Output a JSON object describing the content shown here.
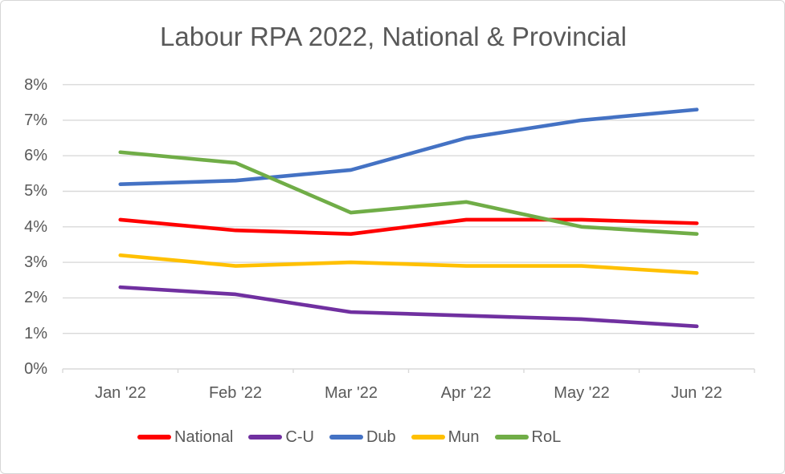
{
  "chart_data": {
    "type": "line",
    "title": "Labour RPA 2022, National & Provincial",
    "categories": [
      "Jan '22",
      "Feb '22",
      "Mar '22",
      "Apr '22",
      "May '22",
      "Jun '22"
    ],
    "y_tick_labels": [
      "8%",
      "7%",
      "6%",
      "5%",
      "4%",
      "3%",
      "2%",
      "1%",
      "0%"
    ],
    "ylim": [
      0,
      8
    ],
    "y_unit": "%",
    "grid": true,
    "gridline_color": "#d9d9d9",
    "axis_text_color": "#595959",
    "legend_position": "bottom",
    "series": [
      {
        "name": "National",
        "color": "#ff0000",
        "values": [
          4.2,
          3.9,
          3.8,
          4.2,
          4.2,
          4.1
        ]
      },
      {
        "name": "C-U",
        "color": "#7030a0",
        "values": [
          2.3,
          2.1,
          1.6,
          1.5,
          1.4,
          1.2
        ]
      },
      {
        "name": "Dub",
        "color": "#4472c4",
        "values": [
          5.2,
          5.3,
          5.6,
          6.5,
          7.0,
          7.3
        ]
      },
      {
        "name": "Mun",
        "color": "#ffc000",
        "values": [
          3.2,
          2.9,
          3.0,
          2.9,
          2.9,
          2.7
        ]
      },
      {
        "name": "RoL",
        "color": "#70ad47",
        "values": [
          6.1,
          5.8,
          4.4,
          4.7,
          4.0,
          3.8
        ]
      }
    ]
  }
}
